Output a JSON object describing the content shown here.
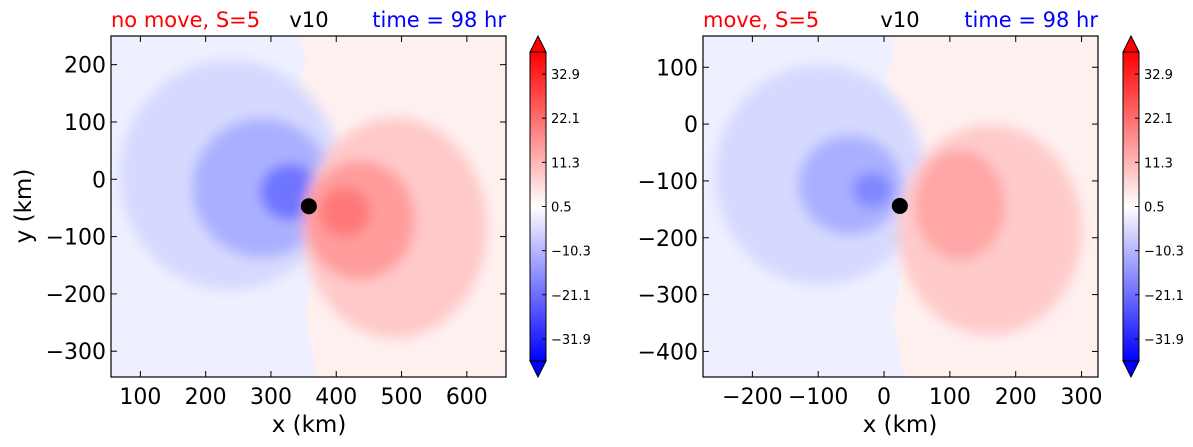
{
  "chart_data": [
    {
      "type": "heatmap",
      "variable": "v10",
      "title_left": "no move, S=5",
      "title_center": "v10",
      "title_right": "time = 98 hr",
      "title_colors": {
        "left": "#ff0000",
        "center": "#000000",
        "right": "#0000ff"
      },
      "xlabel": "x (km)",
      "ylabel": "y (km)",
      "xlim": [
        55,
        660
      ],
      "ylim": [
        -345,
        250
      ],
      "xticks": [
        100,
        200,
        300,
        400,
        500,
        600
      ],
      "yticks": [
        200,
        100,
        0,
        -100,
        -200,
        -300
      ],
      "center_marker": {
        "x": 358,
        "y": -47
      },
      "colorbar": {
        "ticks": [
          "32.9",
          "22.1",
          "11.3",
          "0.5",
          "−10.3",
          "−21.1",
          "−31.9"
        ],
        "vmin": -37.3,
        "vmax": 38.3,
        "extend": "both"
      },
      "colormap": {
        "neg": "#0000ff",
        "mid": "#ffffff",
        "pos": "#ff0000"
      }
    },
    {
      "type": "heatmap",
      "variable": "v10",
      "title_left": "move, S=5",
      "title_center": "v10",
      "title_right": "time = 98 hr",
      "title_colors": {
        "left": "#ff0000",
        "center": "#000000",
        "right": "#0000ff"
      },
      "xlabel": "x (km)",
      "ylabel": "",
      "xlim": [
        -275,
        325
      ],
      "ylim": [
        -445,
        155
      ],
      "xticks": [
        -200,
        -100,
        0,
        100,
        200,
        300
      ],
      "yticks": [
        100,
        0,
        -100,
        -200,
        -300,
        -400
      ],
      "center_marker": {
        "x": 24,
        "y": -144
      },
      "colorbar": {
        "ticks": [
          "32.9",
          "22.1",
          "11.3",
          "0.5",
          "−10.3",
          "−21.1",
          "−31.9"
        ],
        "vmin": -37.3,
        "vmax": 38.3,
        "extend": "both"
      },
      "colormap": {
        "neg": "#0000ff",
        "mid": "#ffffff",
        "pos": "#ff0000"
      }
    }
  ]
}
